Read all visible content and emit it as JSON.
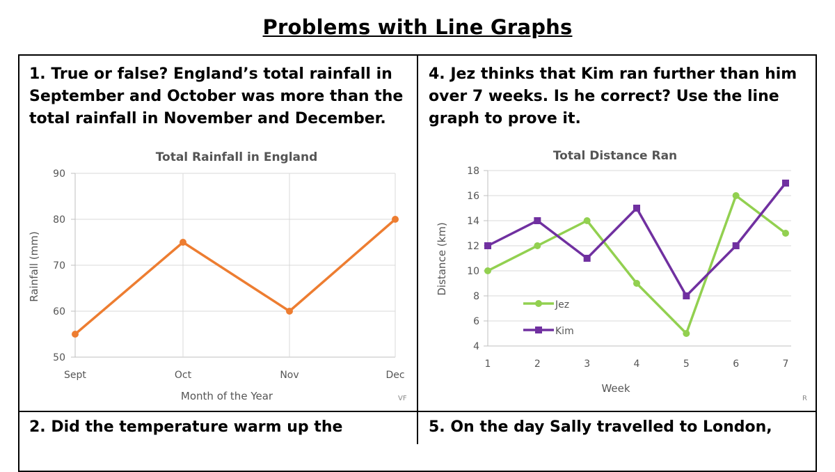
{
  "page": {
    "title": "Problems with Line Graphs",
    "q1": "1. True or false? England’s total rainfall in September and October was more than the total rainfall in November and December.",
    "q4": "4. Jez thinks that Kim ran further than him over 7 weeks.  Is he correct?  Use the line graph to prove it.",
    "q2": "2. Did the temperature warm up the",
    "q5": "5. On the day Sally travelled to London,",
    "mark_left": "VF",
    "mark_right": "R"
  },
  "colors": {
    "orange": "#ED7D31",
    "green": "#92D050",
    "purple": "#7030A0",
    "grid": "#d9d9d9"
  },
  "chart_data": [
    {
      "type": "line",
      "title": "Total Rainfall in England",
      "xlabel": "Month of the Year",
      "ylabel": "Rainfall (mm)",
      "categories": [
        "Sept",
        "Oct",
        "Nov",
        "Dec"
      ],
      "series": [
        {
          "values": [
            55,
            75,
            60,
            80
          ]
        }
      ],
      "ylim": [
        50,
        90
      ],
      "yticks": [
        50,
        60,
        70,
        80,
        90
      ],
      "grid": true
    },
    {
      "type": "line",
      "title": "Total Distance Ran",
      "xlabel": "Week",
      "ylabel": "Distance (km)",
      "categories": [
        "1",
        "2",
        "3",
        "4",
        "5",
        "6",
        "7"
      ],
      "series": [
        {
          "name": "Jez",
          "values": [
            10,
            12,
            14,
            9,
            5,
            16,
            13
          ]
        },
        {
          "name": "Kim",
          "values": [
            12,
            14,
            11,
            15,
            8,
            12,
            17
          ]
        }
      ],
      "ylim": [
        4,
        18
      ],
      "yticks": [
        4,
        6,
        8,
        10,
        12,
        14,
        16,
        18
      ],
      "grid": true,
      "legend": "left"
    }
  ]
}
